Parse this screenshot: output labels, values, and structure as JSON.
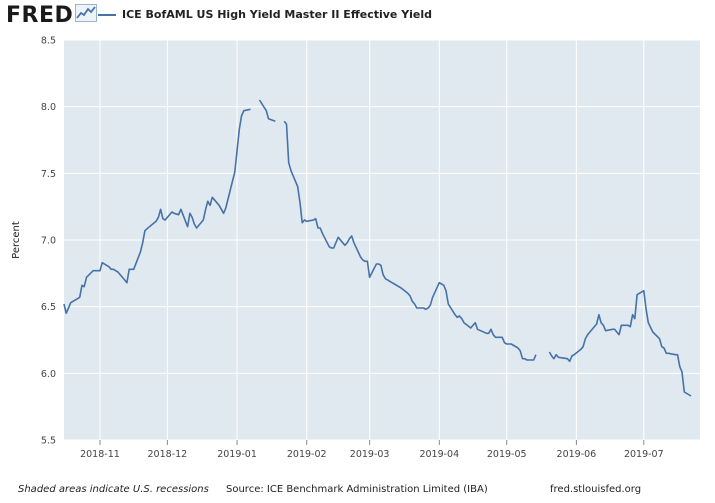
{
  "header": {
    "logo_text": "FRED",
    "series_title": "ICE BofAML US High Yield Master II Effective Yield"
  },
  "footer": {
    "recession_note": "Shaded areas indicate U.S. recessions",
    "source": "Source: ICE Benchmark Administration Limited (IBA)",
    "url": "fred.stlouisfed.org"
  },
  "colors": {
    "series": "#4572a7",
    "plot_background": "#e1e9f0",
    "grid": "#ffffff"
  },
  "icons": [
    "fred-chart-logo-icon"
  ],
  "chart_data": {
    "type": "line",
    "title": "ICE BofAML US High Yield Master II Effective Yield",
    "xlabel": "",
    "ylabel": "Percent",
    "ylim": [
      5.5,
      8.5
    ],
    "yticks": [
      "5.5",
      "6.0",
      "6.5",
      "7.0",
      "7.5",
      "8.0",
      "8.5"
    ],
    "xlim": [
      "2018-10-16",
      "2019-07-26"
    ],
    "xticks": [
      "2018-11",
      "2018-12",
      "2019-01",
      "2019-02",
      "2019-03",
      "2019-04",
      "2019-05",
      "2019-06",
      "2019-07"
    ],
    "grid": true,
    "legend": "top-left",
    "series": [
      {
        "name": "ICE BofAML US High Yield Master II Effective Yield",
        "segments": [
          [
            [
              "2018-10-16",
              6.52
            ],
            [
              "2018-10-17",
              6.45
            ],
            [
              "2018-10-18",
              6.49
            ],
            [
              "2018-10-19",
              6.53
            ],
            [
              "2018-10-22",
              6.56
            ],
            [
              "2018-10-23",
              6.57
            ],
            [
              "2018-10-24",
              6.66
            ],
            [
              "2018-10-25",
              6.65
            ],
            [
              "2018-10-26",
              6.72
            ],
            [
              "2018-10-29",
              6.77
            ],
            [
              "2018-10-30",
              6.77
            ],
            [
              "2018-10-31",
              6.77
            ],
            [
              "2018-11-01",
              6.77
            ],
            [
              "2018-11-02",
              6.83
            ],
            [
              "2018-11-05",
              6.8
            ],
            [
              "2018-11-06",
              6.78
            ],
            [
              "2018-11-07",
              6.78
            ],
            [
              "2018-11-08",
              6.77
            ],
            [
              "2018-11-09",
              6.76
            ],
            [
              "2018-11-12",
              6.7
            ],
            [
              "2018-11-13",
              6.68
            ],
            [
              "2018-11-14",
              6.78
            ],
            [
              "2018-11-15",
              6.78
            ],
            [
              "2018-11-16",
              6.78
            ],
            [
              "2018-11-19",
              6.91
            ],
            [
              "2018-11-20",
              6.98
            ],
            [
              "2018-11-21",
              7.07
            ],
            [
              "2018-11-23",
              7.1
            ],
            [
              "2018-11-26",
              7.14
            ],
            [
              "2018-11-27",
              7.17
            ],
            [
              "2018-11-28",
              7.23
            ],
            [
              "2018-11-29",
              7.16
            ],
            [
              "2018-11-30",
              7.15
            ],
            [
              "2018-12-03",
              7.21
            ],
            [
              "2018-12-04",
              7.2
            ],
            [
              "2018-12-06",
              7.19
            ],
            [
              "2018-12-07",
              7.23
            ],
            [
              "2018-12-10",
              7.1
            ],
            [
              "2018-12-11",
              7.2
            ],
            [
              "2018-12-12",
              7.17
            ],
            [
              "2018-12-13",
              7.12
            ],
            [
              "2018-12-14",
              7.09
            ],
            [
              "2018-12-17",
              7.15
            ],
            [
              "2018-12-18",
              7.23
            ],
            [
              "2018-12-19",
              7.29
            ],
            [
              "2018-12-20",
              7.26
            ],
            [
              "2018-12-21",
              7.32
            ],
            [
              "2018-12-24",
              7.26
            ],
            [
              "2018-12-26",
              7.2
            ],
            [
              "2018-12-27",
              7.24
            ],
            [
              "2018-12-28",
              7.31
            ],
            [
              "2018-12-31",
              7.51
            ],
            [
              "2019-01-02",
              7.83
            ],
            [
              "2019-01-03",
              7.93
            ],
            [
              "2019-01-04",
              7.97
            ],
            [
              "2019-01-07",
              7.98
            ]
          ],
          [
            [
              "2019-01-11",
              8.05
            ],
            [
              "2019-01-14",
              7.97
            ],
            [
              "2019-01-15",
              7.91
            ],
            [
              "2019-01-18",
              7.89
            ]
          ],
          [
            [
              "2019-01-22",
              7.89
            ],
            [
              "2019-01-23",
              7.87
            ],
            [
              "2019-01-24",
              7.58
            ],
            [
              "2019-01-25",
              7.52
            ],
            [
              "2019-01-28",
              7.4
            ],
            [
              "2019-01-29",
              7.28
            ],
            [
              "2019-01-30",
              7.13
            ],
            [
              "2019-01-31",
              7.15
            ],
            [
              "2019-02-01",
              7.14
            ],
            [
              "2019-02-04",
              7.15
            ],
            [
              "2019-02-05",
              7.16
            ],
            [
              "2019-02-06",
              7.09
            ],
            [
              "2019-02-07",
              7.09
            ],
            [
              "2019-02-08",
              7.05
            ],
            [
              "2019-02-11",
              6.95
            ],
            [
              "2019-02-12",
              6.94
            ],
            [
              "2019-02-13",
              6.94
            ],
            [
              "2019-02-14",
              6.98
            ],
            [
              "2019-02-15",
              7.02
            ],
            [
              "2019-02-18",
              6.96
            ],
            [
              "2019-02-19",
              6.98
            ],
            [
              "2019-02-20",
              7.01
            ],
            [
              "2019-02-21",
              7.03
            ],
            [
              "2019-02-22",
              6.98
            ],
            [
              "2019-02-25",
              6.87
            ],
            [
              "2019-02-26",
              6.85
            ],
            [
              "2019-02-27",
              6.84
            ],
            [
              "2019-02-28",
              6.84
            ],
            [
              "2019-03-01",
              6.72
            ],
            [
              "2019-03-04",
              6.82
            ],
            [
              "2019-03-05",
              6.82
            ],
            [
              "2019-03-06",
              6.81
            ],
            [
              "2019-03-07",
              6.74
            ],
            [
              "2019-03-08",
              6.71
            ],
            [
              "2019-03-11",
              6.68
            ],
            [
              "2019-03-12",
              6.67
            ],
            [
              "2019-03-13",
              6.66
            ],
            [
              "2019-03-14",
              6.65
            ],
            [
              "2019-03-15",
              6.64
            ],
            [
              "2019-03-18",
              6.6
            ],
            [
              "2019-03-19",
              6.58
            ],
            [
              "2019-03-20",
              6.54
            ],
            [
              "2019-03-21",
              6.52
            ],
            [
              "2019-03-22",
              6.49
            ],
            [
              "2019-03-25",
              6.49
            ],
            [
              "2019-03-26",
              6.48
            ],
            [
              "2019-03-27",
              6.49
            ],
            [
              "2019-03-28",
              6.51
            ],
            [
              "2019-03-29",
              6.57
            ],
            [
              "2019-04-01",
              6.68
            ],
            [
              "2019-04-02",
              6.67
            ],
            [
              "2019-04-03",
              6.66
            ],
            [
              "2019-04-04",
              6.62
            ],
            [
              "2019-04-05",
              6.52
            ],
            [
              "2019-04-08",
              6.44
            ],
            [
              "2019-04-09",
              6.42
            ],
            [
              "2019-04-10",
              6.43
            ],
            [
              "2019-04-11",
              6.41
            ],
            [
              "2019-04-12",
              6.38
            ],
            [
              "2019-04-15",
              6.34
            ],
            [
              "2019-04-16",
              6.36
            ],
            [
              "2019-04-17",
              6.38
            ],
            [
              "2019-04-18",
              6.33
            ],
            [
              "2019-04-22",
              6.3
            ],
            [
              "2019-04-23",
              6.3
            ],
            [
              "2019-04-24",
              6.33
            ],
            [
              "2019-04-25",
              6.29
            ],
            [
              "2019-04-26",
              6.27
            ],
            [
              "2019-04-29",
              6.27
            ],
            [
              "2019-04-30",
              6.23
            ],
            [
              "2019-05-01",
              6.22
            ],
            [
              "2019-05-02",
              6.22
            ],
            [
              "2019-05-03",
              6.22
            ],
            [
              "2019-05-06",
              6.19
            ],
            [
              "2019-05-07",
              6.17
            ],
            [
              "2019-05-08",
              6.11
            ],
            [
              "2019-05-09",
              6.11
            ],
            [
              "2019-05-10",
              6.1
            ],
            [
              "2019-05-13",
              6.1
            ],
            [
              "2019-05-14",
              6.14
            ]
          ],
          [
            [
              "2019-05-20",
              6.16
            ],
            [
              "2019-05-21",
              6.13
            ],
            [
              "2019-05-22",
              6.11
            ],
            [
              "2019-05-23",
              6.14
            ],
            [
              "2019-05-24",
              6.12
            ],
            [
              "2019-05-28",
              6.11
            ],
            [
              "2019-05-29",
              6.09
            ],
            [
              "2019-05-30",
              6.13
            ],
            [
              "2019-05-31",
              6.14
            ],
            [
              "2019-06-03",
              6.18
            ],
            [
              "2019-06-04",
              6.2
            ],
            [
              "2019-06-05",
              6.26
            ],
            [
              "2019-06-06",
              6.29
            ],
            [
              "2019-06-07",
              6.31
            ],
            [
              "2019-06-10",
              6.37
            ],
            [
              "2019-06-11",
              6.44
            ],
            [
              "2019-06-12",
              6.38
            ],
            [
              "2019-06-13",
              6.36
            ],
            [
              "2019-06-14",
              6.32
            ],
            [
              "2019-06-17",
              6.33
            ],
            [
              "2019-06-18",
              6.33
            ],
            [
              "2019-06-19",
              6.31
            ],
            [
              "2019-06-20",
              6.29
            ],
            [
              "2019-06-21",
              6.36
            ],
            [
              "2019-06-24",
              6.36
            ],
            [
              "2019-06-25",
              6.35
            ],
            [
              "2019-06-26",
              6.44
            ],
            [
              "2019-06-27",
              6.41
            ],
            [
              "2019-06-28",
              6.59
            ],
            [
              "2019-07-01",
              6.62
            ],
            [
              "2019-07-02",
              6.48
            ],
            [
              "2019-07-03",
              6.38
            ],
            [
              "2019-07-05",
              6.31
            ],
            [
              "2019-07-08",
              6.26
            ],
            [
              "2019-07-09",
              6.2
            ],
            [
              "2019-07-10",
              6.19
            ],
            [
              "2019-07-11",
              6.15
            ],
            [
              "2019-07-12",
              6.15
            ],
            [
              "2019-07-15",
              6.14
            ],
            [
              "2019-07-16",
              6.14
            ],
            [
              "2019-07-17",
              6.05
            ],
            [
              "2019-07-18",
              6.01
            ],
            [
              "2019-07-19",
              5.86
            ],
            [
              "2019-07-22",
              5.83
            ]
          ]
        ]
      }
    ]
  }
}
